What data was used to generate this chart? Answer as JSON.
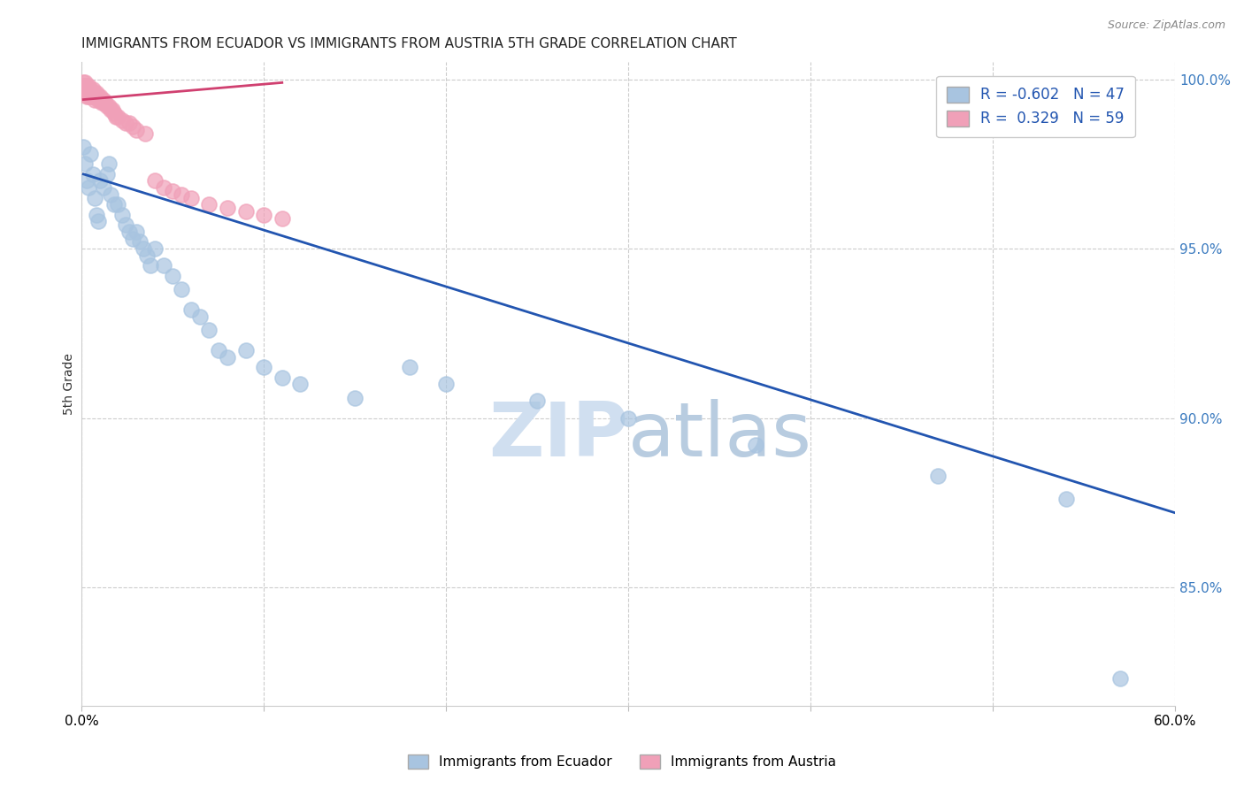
{
  "title": "IMMIGRANTS FROM ECUADOR VS IMMIGRANTS FROM AUSTRIA 5TH GRADE CORRELATION CHART",
  "source": "Source: ZipAtlas.com",
  "ylabel": "5th Grade",
  "xlim": [
    0.0,
    0.6
  ],
  "ylim": [
    0.815,
    1.005
  ],
  "xticks": [
    0.0,
    0.1,
    0.2,
    0.3,
    0.4,
    0.5,
    0.6
  ],
  "yticks_right": [
    1.0,
    0.95,
    0.9,
    0.85
  ],
  "ytick_labels_right": [
    "100.0%",
    "95.0%",
    "90.0%",
    "85.0%"
  ],
  "xtick_labels": [
    "0.0%",
    "",
    "",
    "",
    "",
    "",
    "60.0%"
  ],
  "ecuador_R": -0.602,
  "ecuador_N": 47,
  "austria_R": 0.329,
  "austria_N": 59,
  "ecuador_color": "#a8c4e0",
  "austria_color": "#f0a0b8",
  "ecuador_line_color": "#2255b0",
  "austria_line_color": "#d04070",
  "background_color": "#ffffff",
  "grid_color": "#cccccc",
  "watermark_color": "#d0dff0",
  "ecuador_x": [
    0.001,
    0.002,
    0.003,
    0.004,
    0.005,
    0.006,
    0.007,
    0.008,
    0.009,
    0.01,
    0.012,
    0.014,
    0.015,
    0.016,
    0.018,
    0.02,
    0.022,
    0.024,
    0.026,
    0.028,
    0.03,
    0.032,
    0.034,
    0.036,
    0.038,
    0.04,
    0.045,
    0.05,
    0.055,
    0.06,
    0.065,
    0.07,
    0.075,
    0.08,
    0.09,
    0.1,
    0.11,
    0.12,
    0.15,
    0.18,
    0.2,
    0.25,
    0.3,
    0.37,
    0.47,
    0.54,
    0.57
  ],
  "ecuador_y": [
    0.98,
    0.975,
    0.97,
    0.968,
    0.978,
    0.972,
    0.965,
    0.96,
    0.958,
    0.97,
    0.968,
    0.972,
    0.975,
    0.966,
    0.963,
    0.963,
    0.96,
    0.957,
    0.955,
    0.953,
    0.955,
    0.952,
    0.95,
    0.948,
    0.945,
    0.95,
    0.945,
    0.942,
    0.938,
    0.932,
    0.93,
    0.926,
    0.92,
    0.918,
    0.92,
    0.915,
    0.912,
    0.91,
    0.906,
    0.915,
    0.91,
    0.905,
    0.9,
    0.892,
    0.883,
    0.876,
    0.823
  ],
  "austria_x": [
    0.001,
    0.001,
    0.001,
    0.001,
    0.002,
    0.002,
    0.002,
    0.002,
    0.003,
    0.003,
    0.003,
    0.003,
    0.004,
    0.004,
    0.004,
    0.004,
    0.005,
    0.005,
    0.005,
    0.006,
    0.006,
    0.006,
    0.007,
    0.007,
    0.007,
    0.008,
    0.008,
    0.009,
    0.009,
    0.01,
    0.01,
    0.011,
    0.011,
    0.012,
    0.012,
    0.013,
    0.014,
    0.015,
    0.016,
    0.017,
    0.018,
    0.019,
    0.02,
    0.022,
    0.024,
    0.026,
    0.028,
    0.03,
    0.035,
    0.04,
    0.045,
    0.05,
    0.055,
    0.06,
    0.07,
    0.08,
    0.09,
    0.1,
    0.11
  ],
  "austria_y": [
    0.999,
    0.998,
    0.997,
    0.996,
    0.999,
    0.998,
    0.997,
    0.996,
    0.998,
    0.997,
    0.996,
    0.995,
    0.998,
    0.997,
    0.996,
    0.995,
    0.997,
    0.996,
    0.995,
    0.997,
    0.996,
    0.995,
    0.996,
    0.995,
    0.994,
    0.996,
    0.995,
    0.995,
    0.994,
    0.995,
    0.994,
    0.994,
    0.993,
    0.994,
    0.993,
    0.993,
    0.992,
    0.992,
    0.991,
    0.991,
    0.99,
    0.989,
    0.989,
    0.988,
    0.987,
    0.987,
    0.986,
    0.985,
    0.984,
    0.97,
    0.968,
    0.967,
    0.966,
    0.965,
    0.963,
    0.962,
    0.961,
    0.96,
    0.959
  ],
  "ecuador_trend_x": [
    0.001,
    0.6
  ],
  "ecuador_trend_y": [
    0.972,
    0.872
  ],
  "austria_trend_x": [
    0.001,
    0.11
  ],
  "austria_trend_y": [
    0.994,
    0.999
  ]
}
